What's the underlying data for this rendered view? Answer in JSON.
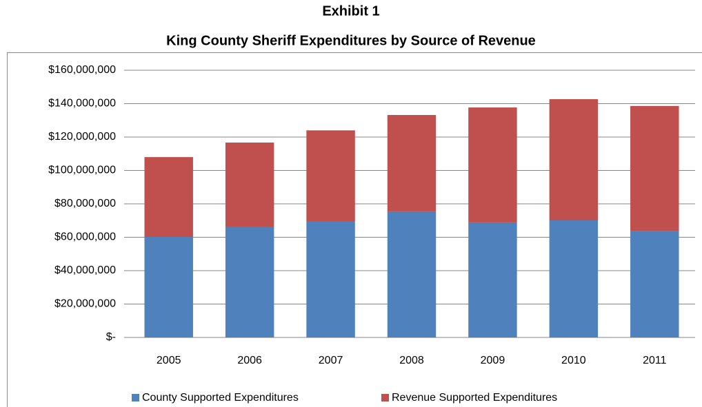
{
  "chart_data": {
    "type": "stacked-bar",
    "title": "Exhibit 1",
    "subtitle": "King County Sheriff Expenditures by Source of Revenue",
    "categories": [
      "2005",
      "2006",
      "2007",
      "2008",
      "2009",
      "2010",
      "2011"
    ],
    "series": [
      {
        "name": "County Supported Expenditures",
        "color": "#4f81bd",
        "values": [
          60200000,
          66000000,
          69300000,
          75500000,
          68900000,
          70100000,
          63900000
        ]
      },
      {
        "name": "Revenue Supported Expenditures",
        "color": "#c0504d",
        "values": [
          47800000,
          50700000,
          54700000,
          57700000,
          68800000,
          72600000,
          74700000
        ]
      }
    ],
    "ylim": [
      0,
      160000000
    ],
    "yticks": [
      {
        "value": 0,
        "label": "$-"
      },
      {
        "value": 20000000,
        "label": "$20,000,000"
      },
      {
        "value": 40000000,
        "label": "$40,000,000"
      },
      {
        "value": 60000000,
        "label": "$60,000,000"
      },
      {
        "value": 80000000,
        "label": "$80,000,000"
      },
      {
        "value": 100000000,
        "label": "$100,000,000"
      },
      {
        "value": 120000000,
        "label": "$120,000,000"
      },
      {
        "value": 140000000,
        "label": "$140,000,000"
      },
      {
        "value": 160000000,
        "label": "$160,000,000"
      }
    ],
    "grid": true
  }
}
